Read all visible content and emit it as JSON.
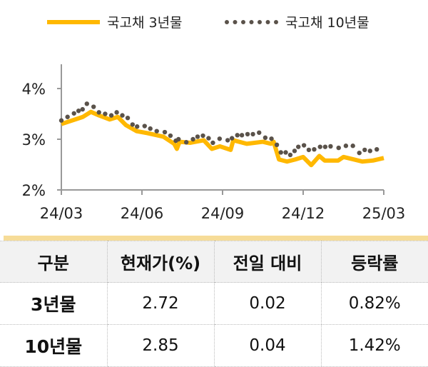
{
  "chart_data": {
    "type": "line",
    "title": "",
    "ylim": [
      2,
      4.5
    ],
    "yticks": [
      "2%",
      "3%",
      "4%"
    ],
    "xticks": [
      "24/03",
      "24/06",
      "24/09",
      "24/12",
      "25/03"
    ],
    "x_unit": "months since 24/03",
    "legend": "top",
    "series": [
      {
        "name": "국고채 3년물",
        "style": "line",
        "color": "#ffb800",
        "x": [
          0,
          0.8,
          1.1,
          1.4,
          1.8,
          2.1,
          2.4,
          2.8,
          3.2,
          3.8,
          4.2,
          4.3,
          4.4,
          4.8,
          5.3,
          5.6,
          5.9,
          6.3,
          6.4,
          6.9,
          7.5,
          7.8,
          7.9,
          8.1,
          8.4,
          8.7,
          9.0,
          9.3,
          9.6,
          9.8,
          10.3,
          10.5,
          10.9,
          11.2,
          11.6,
          12
        ],
        "y": [
          3.3,
          3.44,
          3.54,
          3.47,
          3.39,
          3.44,
          3.28,
          3.16,
          3.12,
          3.05,
          2.91,
          2.81,
          2.95,
          2.93,
          2.98,
          2.81,
          2.86,
          2.79,
          2.98,
          2.91,
          2.95,
          2.91,
          2.95,
          2.6,
          2.56,
          2.6,
          2.65,
          2.49,
          2.67,
          2.58,
          2.58,
          2.65,
          2.6,
          2.56,
          2.58,
          2.63
        ]
      },
      {
        "name": "국고채 10년물",
        "style": "dots",
        "color": "#5a524a",
        "x": [
          0,
          0.23,
          0.47,
          0.64,
          0.79,
          0.95,
          1.2,
          1.4,
          1.63,
          1.86,
          2.06,
          2.27,
          2.47,
          2.65,
          2.82,
          3.1,
          3.31,
          3.55,
          3.85,
          4.06,
          4.26,
          4.36,
          4.65,
          4.9,
          5.07,
          5.27,
          5.48,
          5.64,
          5.89,
          6.19,
          6.35,
          6.55,
          6.72,
          6.93,
          7.13,
          7.36,
          7.59,
          7.82,
          8.02,
          8.17,
          8.35,
          8.52,
          8.68,
          8.82,
          9.03,
          9.21,
          9.41,
          9.63,
          9.82,
          10.02,
          10.32,
          10.59,
          10.85,
          11.09,
          11.29,
          11.49,
          11.74
        ],
        "y": [
          3.37,
          3.44,
          3.51,
          3.56,
          3.59,
          3.7,
          3.64,
          3.53,
          3.5,
          3.47,
          3.53,
          3.47,
          3.42,
          3.29,
          3.25,
          3.26,
          3.21,
          3.16,
          3.14,
          3.07,
          2.97,
          3.0,
          2.94,
          3.0,
          3.05,
          3.07,
          3.02,
          2.93,
          3.01,
          2.98,
          3.02,
          3.08,
          3.08,
          3.1,
          3.1,
          3.13,
          3.03,
          3.01,
          2.89,
          2.74,
          2.74,
          2.69,
          2.77,
          2.85,
          2.88,
          2.79,
          2.8,
          2.85,
          2.85,
          2.86,
          2.83,
          2.87,
          2.87,
          2.73,
          2.79,
          2.77,
          2.8
        ]
      }
    ]
  },
  "table": {
    "headers": [
      "구분",
      "현재가(%)",
      "전일 대비",
      "등락률"
    ],
    "rows": [
      [
        "3년물",
        "2.72",
        "0.02",
        "0.82%"
      ],
      [
        "10년물",
        "2.85",
        "0.04",
        "1.42%"
      ]
    ]
  }
}
